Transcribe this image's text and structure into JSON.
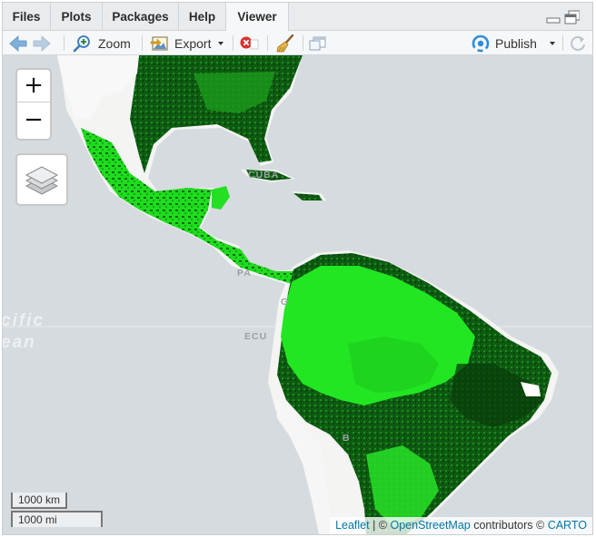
{
  "tabs": [
    {
      "label": "Files"
    },
    {
      "label": "Plots"
    },
    {
      "label": "Packages"
    },
    {
      "label": "Help"
    },
    {
      "label": "Viewer",
      "active": true
    }
  ],
  "toolbar": {
    "back_icon": "arrow-left-icon",
    "forward_icon": "arrow-right-icon",
    "zoom_label": "Zoom",
    "export_label": "Export",
    "clear_icon": "remove-red-x-icon",
    "broom_icon": "broom-icon",
    "popout_icon": "popout-window-icon",
    "publish_label": "Publish",
    "refresh_icon": "refresh-icon"
  },
  "map": {
    "zoom_in": "+",
    "zoom_out": "−",
    "layers_icon": "layers-icon",
    "scale_km": "1000 km",
    "scale_mi": "1000 mi",
    "attribution": {
      "leaflet": "Leaflet",
      "sep": " | © ",
      "osm": "OpenStreetMap",
      "contributors": " contributors © ",
      "carto": "CARTO"
    },
    "ocean_label_1": "cific",
    "ocean_label_2": "ean",
    "country_labels": [
      "CUBA",
      "PA",
      "G",
      "ECU",
      "B"
    ],
    "colors": {
      "ocean": "#d6dbdf",
      "land": "#f4f4f3",
      "veg_bright": "#22e622",
      "veg_dark": "#0b4a0b",
      "link": "#0078a8"
    }
  }
}
